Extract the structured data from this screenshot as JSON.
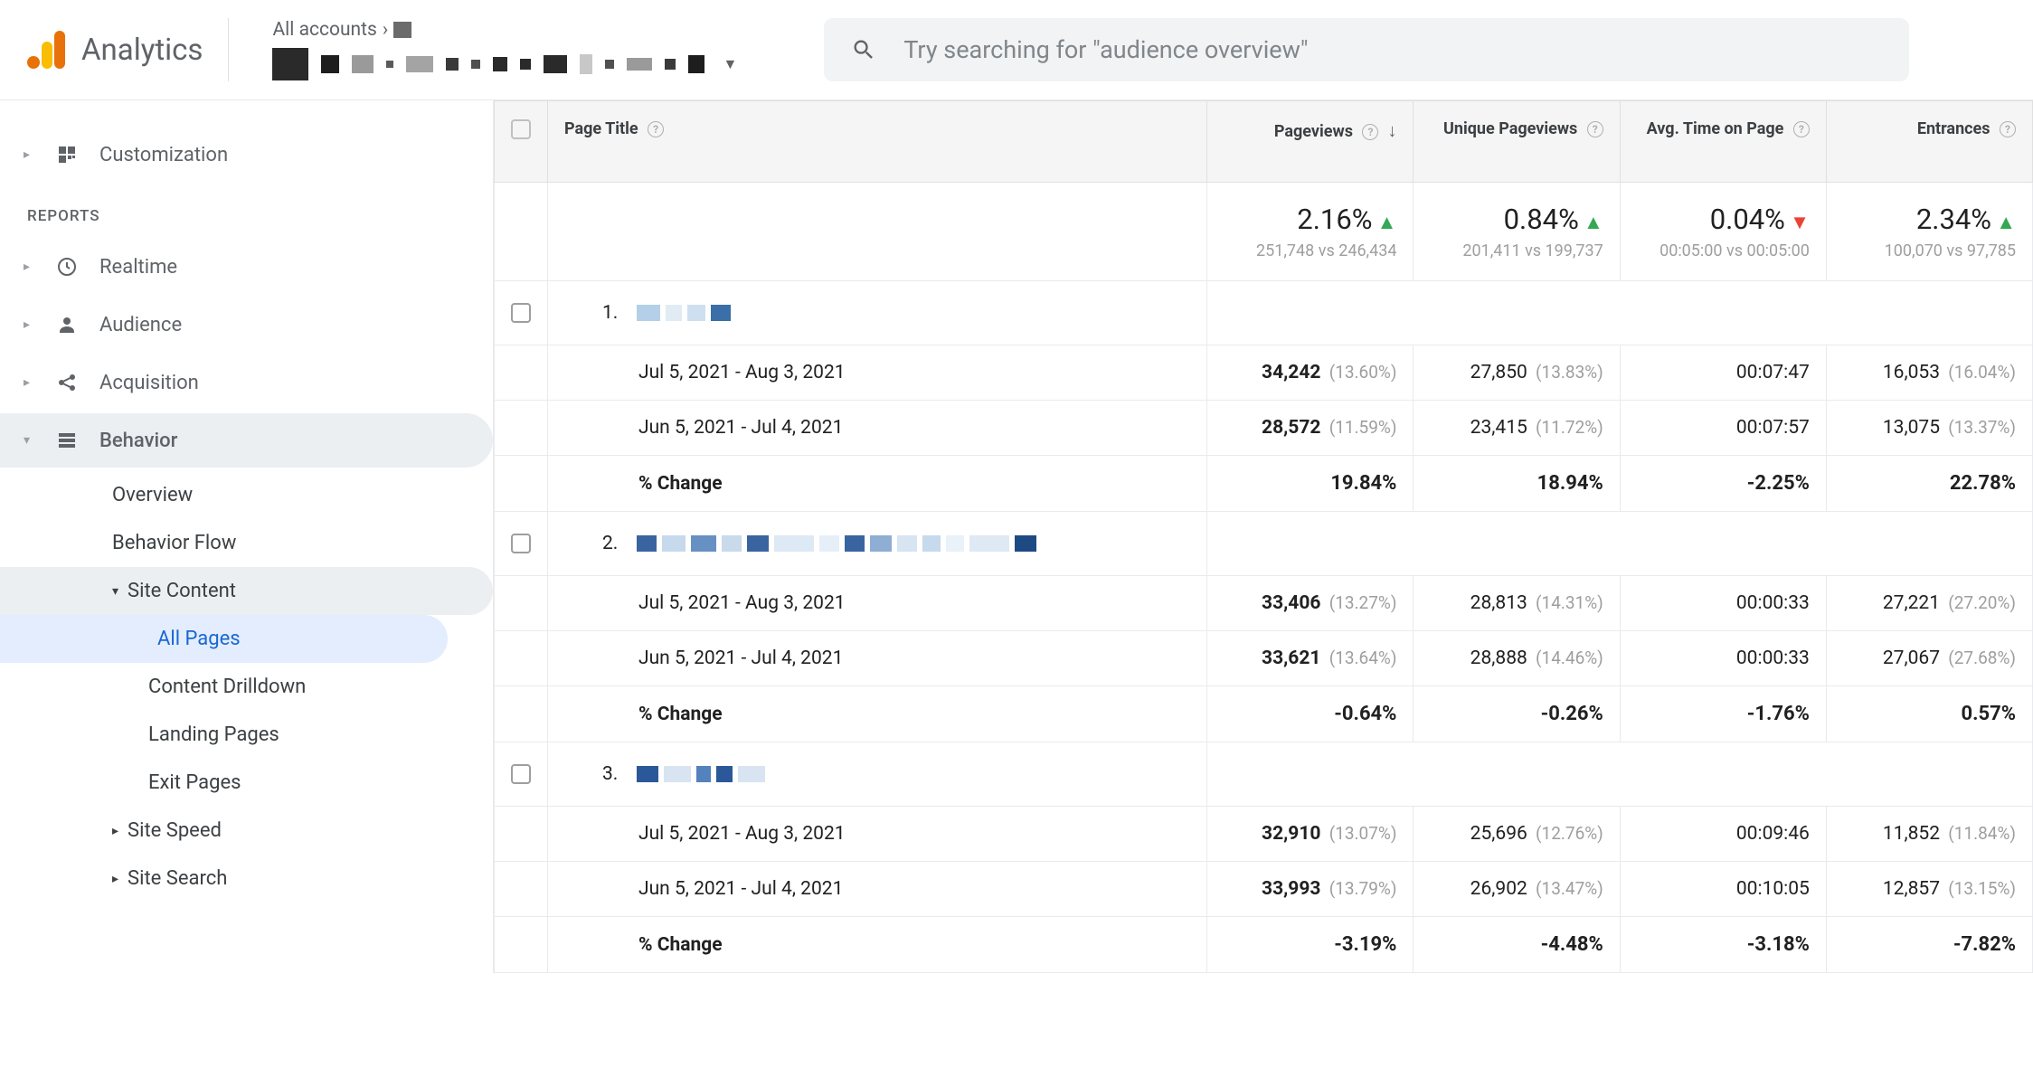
{
  "brand": {
    "name": "Analytics"
  },
  "acct": {
    "breadcrumb": "All accounts"
  },
  "search": {
    "placeholder": "Try searching for \"audience overview\""
  },
  "sidebar": {
    "customization": "Customization",
    "reports_label": "REPORTS",
    "items": [
      {
        "label": "Realtime"
      },
      {
        "label": "Audience"
      },
      {
        "label": "Acquisition"
      },
      {
        "label": "Behavior"
      }
    ],
    "behavior_children": [
      {
        "label": "Overview"
      },
      {
        "label": "Behavior Flow"
      }
    ],
    "site_content": {
      "label": "Site Content",
      "children": [
        {
          "label": "All Pages"
        },
        {
          "label": "Content Drilldown"
        },
        {
          "label": "Landing Pages"
        },
        {
          "label": "Exit Pages"
        }
      ]
    },
    "behavior_tail": [
      {
        "label": "Site Speed"
      },
      {
        "label": "Site Search"
      }
    ]
  },
  "table": {
    "columns": {
      "page_title": "Page Title",
      "pageviews": "Pageviews",
      "unique": "Unique Pageviews",
      "avg_time": "Avg. Time on Page",
      "entrances": "Entrances"
    },
    "summary": {
      "pageviews": {
        "pct": "2.16%",
        "dir": "up",
        "sub": "251,748 vs 246,434"
      },
      "unique": {
        "pct": "0.84%",
        "dir": "up",
        "sub": "201,411 vs 199,737"
      },
      "avg_time": {
        "pct": "0.04%",
        "dir": "dn",
        "sub": "00:05:00 vs 00:05:00"
      },
      "entrances": {
        "pct": "2.34%",
        "dir": "up",
        "sub": "100,070 vs 97,785"
      }
    },
    "period_a": "Jul 5, 2021 - Aug 3, 2021",
    "period_b": "Jun 5, 2021 - Jul 4, 2021",
    "change_label": "% Change",
    "rows": [
      {
        "index": "1.",
        "blur_pattern": [
          [
            "#b4cfe8",
            26
          ],
          [
            "#e1ebf4",
            18
          ],
          [
            "#cedff0",
            20
          ],
          [
            "#3a6fa7",
            22
          ]
        ],
        "a": {
          "pageviews": "34,242",
          "pageviews_pct": "(13.60%)",
          "unique": "27,850",
          "unique_pct": "(13.83%)",
          "avg": "00:07:47",
          "entr": "16,053",
          "entr_pct": "(16.04%)"
        },
        "b": {
          "pageviews": "28,572",
          "pageviews_pct": "(11.59%)",
          "unique": "23,415",
          "unique_pct": "(11.72%)",
          "avg": "00:07:57",
          "entr": "13,075",
          "entr_pct": "(13.37%)"
        },
        "change": {
          "pageviews": "19.84%",
          "unique": "18.94%",
          "avg": "-2.25%",
          "entr": "22.78%"
        }
      },
      {
        "index": "2.",
        "blur_pattern": [
          [
            "#3964a0",
            22
          ],
          [
            "#c7d9ec",
            26
          ],
          [
            "#6790c3",
            28
          ],
          [
            "#c8daec",
            22
          ],
          [
            "#3964a0",
            24
          ],
          [
            "#dde9f4",
            44
          ],
          [
            "#e6eff7",
            22
          ],
          [
            "#3964a0",
            22
          ],
          [
            "#8eaed3",
            24
          ],
          [
            "#d7e4f2",
            22
          ],
          [
            "#c7d9ec",
            20
          ],
          [
            "#e9f1f9",
            20
          ],
          [
            "#dee9f4",
            44
          ],
          [
            "#1e4a84",
            24
          ]
        ],
        "a": {
          "pageviews": "33,406",
          "pageviews_pct": "(13.27%)",
          "unique": "28,813",
          "unique_pct": "(14.31%)",
          "avg": "00:00:33",
          "entr": "27,221",
          "entr_pct": "(27.20%)"
        },
        "b": {
          "pageviews": "33,621",
          "pageviews_pct": "(13.64%)",
          "unique": "28,888",
          "unique_pct": "(14.46%)",
          "avg": "00:00:33",
          "entr": "27,067",
          "entr_pct": "(27.68%)"
        },
        "change": {
          "pageviews": "-0.64%",
          "unique": "-0.26%",
          "avg": "-1.76%",
          "entr": "0.57%"
        }
      },
      {
        "index": "3.",
        "blur_pattern": [
          [
            "#2b5899",
            24
          ],
          [
            "#d8e4f2",
            30
          ],
          [
            "#5382bd",
            16
          ],
          [
            "#2b5899",
            18
          ],
          [
            "#d8e4f2",
            30
          ]
        ],
        "a": {
          "pageviews": "32,910",
          "pageviews_pct": "(13.07%)",
          "unique": "25,696",
          "unique_pct": "(12.76%)",
          "avg": "00:09:46",
          "entr": "11,852",
          "entr_pct": "(11.84%)"
        },
        "b": {
          "pageviews": "33,993",
          "pageviews_pct": "(13.79%)",
          "unique": "26,902",
          "unique_pct": "(13.47%)",
          "avg": "00:10:05",
          "entr": "12,857",
          "entr_pct": "(13.15%)"
        },
        "change": {
          "pageviews": "-3.19%",
          "unique": "-4.48%",
          "avg": "-3.18%",
          "entr": "-7.82%"
        }
      }
    ]
  },
  "colors": {
    "accent_blue": "#1967d2",
    "up": "#34a853",
    "down": "#ea4335",
    "grey_text": "#5f6368",
    "border": "#e8eaed",
    "header_bg": "#f5f5f5",
    "sidebar_active_bg": "#eceff1",
    "sidebar_selected_bg": "#e3edfd"
  }
}
